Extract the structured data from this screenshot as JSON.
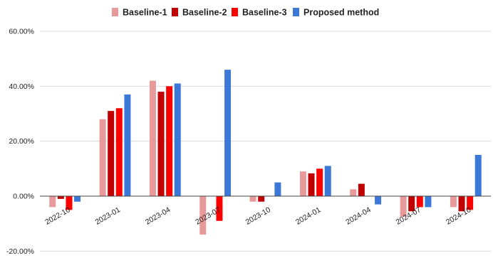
{
  "chart_data": {
    "type": "bar",
    "title": "",
    "xlabel": "",
    "ylabel": "",
    "ylim": [
      -20,
      60
    ],
    "y_ticks": [
      "-20.00%",
      "0.00%",
      "20.00%",
      "40.00%",
      "60.00%"
    ],
    "y_tick_values": [
      -20,
      0,
      20,
      40,
      60
    ],
    "grid": "horizontal",
    "legend_position": "top",
    "categories": [
      "2022-10",
      "2023-01",
      "2023-04",
      "2023-07",
      "2023-10",
      "2024-01",
      "2024-04",
      "2024-07",
      "2024-10"
    ],
    "series": [
      {
        "name": "Baseline-1",
        "color": "#e8999a",
        "values": [
          -4.0,
          28.0,
          42.0,
          -14.0,
          -2.0,
          9.0,
          2.5,
          -7.5,
          -4.0
        ]
      },
      {
        "name": "Baseline-2",
        "color": "#c00000",
        "values": [
          -1.0,
          31.0,
          38.0,
          0.0,
          -2.0,
          8.3,
          4.5,
          -5.5,
          -5.5
        ]
      },
      {
        "name": "Baseline-3",
        "color": "#ff0000",
        "values": [
          -5.0,
          32.0,
          40.0,
          -9.0,
          0.0,
          10.0,
          0.0,
          -4.0,
          -5.0
        ]
      },
      {
        "name": "Proposed method",
        "color": "#3c78d8",
        "values": [
          -2.0,
          37.0,
          41.0,
          46.0,
          5.0,
          11.0,
          -3.0,
          -4.0,
          15.0
        ]
      }
    ]
  }
}
